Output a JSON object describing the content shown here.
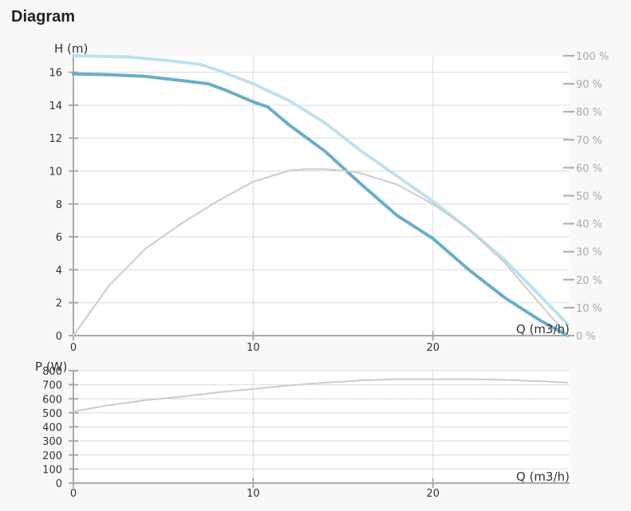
{
  "title": "Diagram",
  "colors": {
    "head": "#6aaec9",
    "efficiency_light": "#bfe0ef",
    "efficiency_grey": "#cccccc",
    "power": "#cccccc",
    "grid": "#b9b9b9",
    "axis": "#aaaaaa"
  },
  "chart_data": [
    {
      "type": "line",
      "ylabel": "H (m)",
      "xlabel": "Q (m3/h)",
      "xlim": [
        0,
        27.6
      ],
      "ylim": [
        0,
        17
      ],
      "y2lim": [
        0,
        100
      ],
      "x_ticks": [
        "0",
        "10",
        "20"
      ],
      "y_ticks": [
        "0",
        "2",
        "4",
        "6",
        "8",
        "10",
        "12",
        "14",
        "16"
      ],
      "y2_ticks": [
        "0 %",
        "10 %",
        "20 %",
        "30 %",
        "40 %",
        "50 %",
        "60 %",
        "70 %",
        "80 %",
        "90 %",
        "100 %"
      ],
      "series": [
        {
          "axis": "left",
          "style": "head",
          "x": [
            0,
            2,
            4,
            6,
            7.5,
            8.5,
            10,
            10.8,
            12,
            14,
            16,
            18,
            20,
            22,
            24,
            26,
            27.5
          ],
          "y": [
            15.9,
            15.85,
            15.75,
            15.5,
            15.3,
            14.9,
            14.2,
            13.9,
            12.8,
            11.2,
            9.2,
            7.3,
            5.9,
            4.0,
            2.3,
            0.9,
            0.0
          ]
        },
        {
          "axis": "right",
          "style": "efficiency_light",
          "x": [
            0,
            3,
            5,
            7,
            8,
            10,
            12,
            14,
            16,
            18,
            20,
            22,
            24,
            26,
            27.5
          ],
          "y": [
            100,
            99.6,
            98.5,
            97,
            95,
            90,
            84,
            76,
            66,
            57,
            48,
            38,
            27,
            14,
            4
          ]
        },
        {
          "axis": "right",
          "style": "efficiency_grey",
          "x": [
            0,
            2,
            4,
            6,
            8,
            10,
            11,
            12,
            13,
            14,
            15,
            16,
            18,
            20,
            22,
            24,
            26,
            27.5
          ],
          "y": [
            0,
            18,
            31,
            40,
            48,
            55,
            57,
            59,
            59.5,
            59.5,
            59,
            58,
            54,
            47,
            38,
            26,
            11,
            0
          ]
        }
      ]
    },
    {
      "type": "line",
      "ylabel": "P (W)",
      "xlabel": "Q (m3/h)",
      "xlim": [
        0,
        27.6
      ],
      "ylim": [
        0,
        800
      ],
      "x_ticks": [
        "0",
        "10",
        "20"
      ],
      "y_ticks": [
        "0",
        "100",
        "200",
        "300",
        "400",
        "500",
        "600",
        "700",
        "800"
      ],
      "series": [
        {
          "axis": "left",
          "style": "power",
          "x": [
            0,
            2,
            4,
            6,
            8,
            10,
            12,
            14,
            16,
            18,
            20,
            22,
            24,
            26,
            27.5
          ],
          "y": [
            510,
            555,
            590,
            615,
            645,
            670,
            695,
            715,
            730,
            740,
            740,
            740,
            735,
            725,
            715
          ]
        }
      ]
    }
  ]
}
